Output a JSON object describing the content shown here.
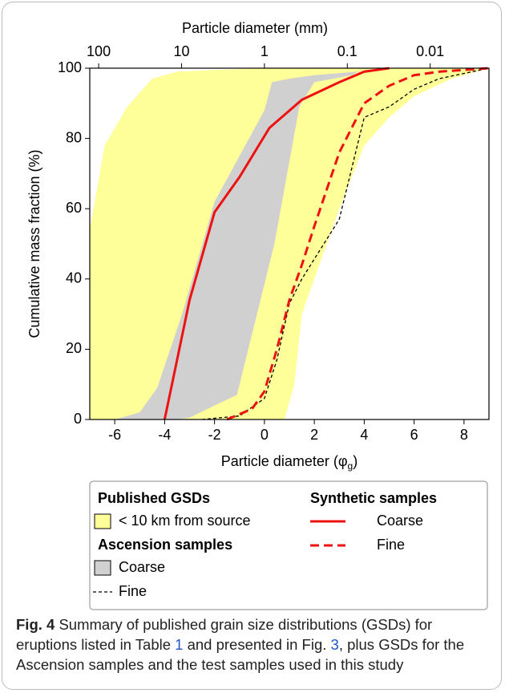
{
  "chart_data": {
    "type": "area-line",
    "xlabel_parts": [
      "Particle diameter (φ",
      "g",
      ")"
    ],
    "ylabel": "Cumulative mass fraction (%)",
    "x2label": "Particle diameter (mm)",
    "xlim": [
      -7,
      9
    ],
    "xticks": [
      -6,
      -4,
      -2,
      0,
      2,
      4,
      6,
      8
    ],
    "ylim": [
      0,
      100
    ],
    "yticks": [
      0,
      20,
      40,
      60,
      80,
      100
    ],
    "x2lim": [
      128,
      0.001953125
    ],
    "x2scale": "log",
    "x2ticks": [
      100,
      10,
      1,
      0.1,
      0.01
    ],
    "groups": [
      {
        "title": "Published GSDs",
        "series": [
          {
            "name": "< 10 km from source",
            "kind": "area",
            "color": "#ffff99",
            "x": [
              -7,
              -7,
              -6.4,
              -5.5,
              -4.5,
              -3.5,
              -2,
              0,
              2,
              4.5,
              7,
              9,
              9,
              7.5,
              6,
              5,
              4,
              3,
              2,
              1.5,
              1.2,
              0.8
            ],
            "values": [
              0,
              54,
              78,
              89,
              97,
              99,
              99.5,
              100,
              100,
              100,
              100,
              100,
              100,
              97,
              92,
              86,
              78,
              60,
              40,
              30,
              10,
              0
            ]
          }
        ]
      },
      {
        "title": "Ascension samples",
        "series": [
          {
            "name": "Coarse",
            "kind": "area",
            "color": "#d0d0d0",
            "x": [
              -6,
              -5,
              -4.3,
              -3.3,
              -2,
              -1,
              0,
              0.3,
              1,
              2,
              3.7,
              4,
              3.5,
              2,
              1.4,
              0.4,
              -1.1,
              -2,
              -3,
              -3.5
            ],
            "values": [
              0,
              2,
              9,
              30,
              62,
              75,
              88,
              96,
              97,
              98,
              99,
              100,
              98,
              96,
              89,
              50,
              7,
              4,
              0.5,
              0
            ]
          },
          {
            "name": "Fine",
            "kind": "line",
            "color": "#000000",
            "dash": "4 3",
            "width": 1.3,
            "x": [
              -2.5,
              -1,
              0,
              0.5,
              1,
              1.5,
              3,
              4,
              5,
              6,
              7,
              9
            ],
            "values": [
              0,
              1,
              6,
              17,
              33,
              40,
              57,
              86,
              89,
              94,
              97,
              100
            ]
          }
        ]
      },
      {
        "title": "Synthetic samples",
        "series": [
          {
            "name": "Coarse",
            "kind": "line",
            "color": "#ee1111",
            "width": 3,
            "x": [
              -4,
              -3,
              -2,
              -1,
              0.2,
              1.5,
              3,
              4,
              5
            ],
            "values": [
              0,
              34,
              59,
              69,
              83,
              91,
              96,
              99,
              100
            ]
          },
          {
            "name": "Fine",
            "kind": "line",
            "color": "#ee1111",
            "dash": "11 6",
            "width": 3,
            "x": [
              -1.5,
              -0.5,
              0,
              0.5,
              1,
              1.5,
              2,
              3,
              4,
              5,
              6,
              7,
              9
            ],
            "values": [
              0,
              3,
              8,
              20,
              34,
              44,
              55,
              76,
              90,
              95,
              98,
              99,
              100
            ]
          }
        ]
      }
    ]
  },
  "caption": {
    "label": "Fig. 4",
    "parts": [
      " Summary of published grain size distributions (GSDs) for eruptions listed in Table ",
      "1",
      " and presented in Fig. ",
      "3",
      ", plus GSDs for the Ascension samples and the test samples used in this study"
    ]
  }
}
